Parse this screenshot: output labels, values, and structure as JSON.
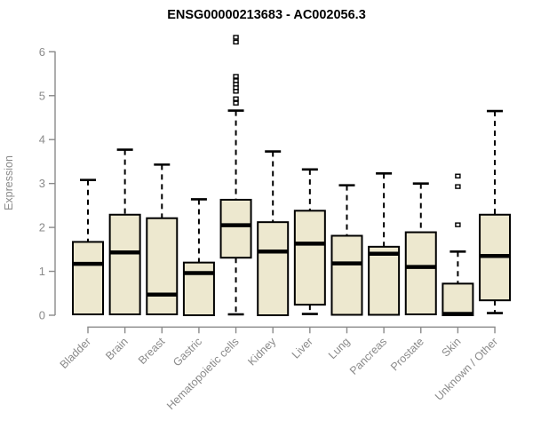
{
  "title": "ENSG00000213683 - AC002056.3",
  "colors": {
    "box_fill": "#EDE8CF",
    "box_border": "#000000",
    "median": "#000000",
    "whisker": "#000000",
    "axis": "#8a8a8a",
    "title": "#000000",
    "background": "#ffffff"
  },
  "chart_data": {
    "type": "boxplot",
    "title": "ENSG00000213683 - AC002056.3",
    "xlabel": "",
    "ylabel": "Expression",
    "ylim": [
      0,
      6
    ],
    "y_ticks": [
      "0",
      "1",
      "2",
      "3",
      "4",
      "5",
      "6"
    ],
    "grid": false,
    "legend": null,
    "categories": [
      "Bladder",
      "Brain",
      "Breast",
      "Gastric",
      "Hematopoietic cells",
      "Kidney",
      "Liver",
      "Lung",
      "Pancreas",
      "Prostate",
      "Skin",
      "Unknown / Other"
    ],
    "boxes": [
      {
        "name": "Bladder",
        "whisker_low": 0.02,
        "q1": 0.02,
        "median": 1.17,
        "q3": 1.67,
        "whisker_high": 3.08,
        "outliers": []
      },
      {
        "name": "Brain",
        "whisker_low": 0.02,
        "q1": 0.02,
        "median": 1.43,
        "q3": 2.29,
        "whisker_high": 3.77,
        "outliers": []
      },
      {
        "name": "Breast",
        "whisker_low": 0.02,
        "q1": 0.02,
        "median": 0.47,
        "q3": 2.21,
        "whisker_high": 3.43,
        "outliers": []
      },
      {
        "name": "Gastric",
        "whisker_low": 0.0,
        "q1": 0.0,
        "median": 0.96,
        "q3": 1.2,
        "whisker_high": 2.64,
        "outliers": []
      },
      {
        "name": "Hematopoietic cells",
        "whisker_low": 0.02,
        "q1": 1.31,
        "median": 2.05,
        "q3": 2.63,
        "whisker_high": 4.66,
        "outliers": [
          6.33,
          6.22,
          5.44,
          5.34,
          5.26,
          5.18,
          5.1,
          4.93,
          4.83
        ]
      },
      {
        "name": "Kidney",
        "whisker_low": 0.0,
        "q1": 0.0,
        "median": 1.45,
        "q3": 2.12,
        "whisker_high": 3.73,
        "outliers": []
      },
      {
        "name": "Liver",
        "whisker_low": 0.03,
        "q1": 0.24,
        "median": 1.63,
        "q3": 2.38,
        "whisker_high": 3.32,
        "outliers": []
      },
      {
        "name": "Lung",
        "whisker_low": 0.01,
        "q1": 0.01,
        "median": 1.18,
        "q3": 1.81,
        "whisker_high": 2.96,
        "outliers": []
      },
      {
        "name": "Pancreas",
        "whisker_low": 0.01,
        "q1": 0.01,
        "median": 1.4,
        "q3": 1.56,
        "whisker_high": 3.23,
        "outliers": []
      },
      {
        "name": "Prostate",
        "whisker_low": 0.02,
        "q1": 0.02,
        "median": 1.1,
        "q3": 1.89,
        "whisker_high": 3.0,
        "outliers": []
      },
      {
        "name": "Skin",
        "whisker_low": 0.0,
        "q1": 0.0,
        "median": 0.03,
        "q3": 0.72,
        "whisker_high": 1.45,
        "outliers": [
          3.17,
          2.93,
          2.06
        ]
      },
      {
        "name": "Unknown / Other",
        "whisker_low": 0.05,
        "q1": 0.34,
        "median": 1.35,
        "q3": 2.29,
        "whisker_high": 4.65,
        "outliers": []
      }
    ]
  }
}
